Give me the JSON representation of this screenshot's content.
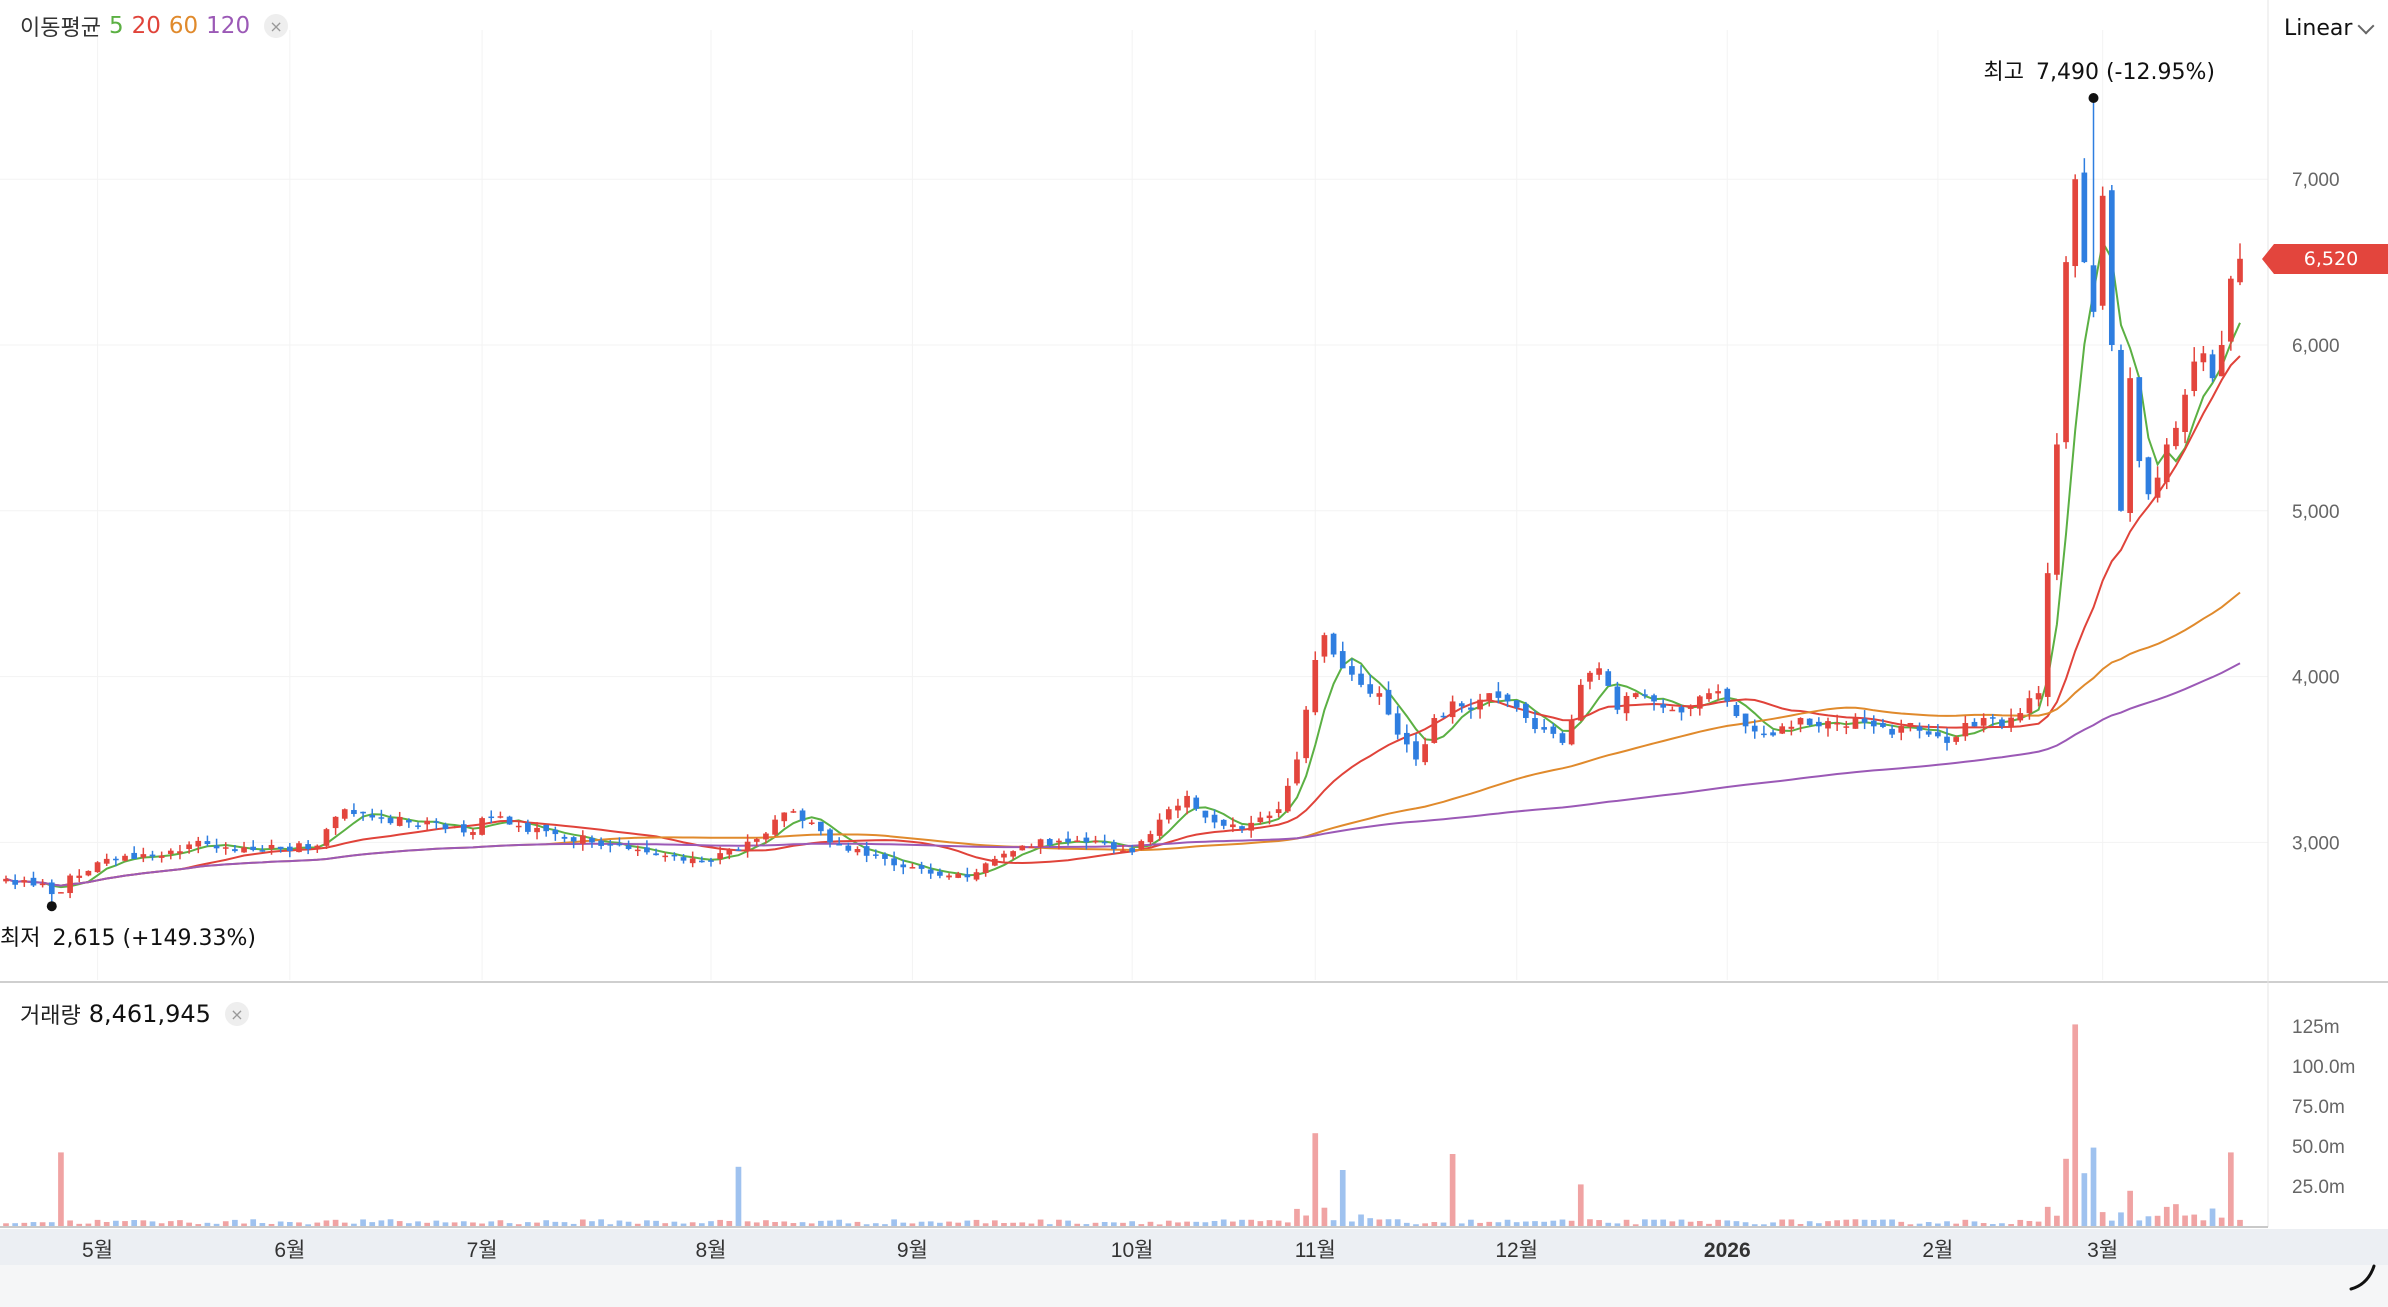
{
  "legend": {
    "title": "이동평균",
    "ma": [
      {
        "label": "5",
        "color": "#5bb043"
      },
      {
        "label": "20",
        "color": "#e0433a"
      },
      {
        "label": "60",
        "color": "#e08a2c"
      },
      {
        "label": "120",
        "color": "#9b59b6"
      }
    ],
    "close_symbol": "×"
  },
  "scale_button": {
    "label": "Linear"
  },
  "current_price": "6,520",
  "high_annotation": {
    "label": "최고",
    "value": "7,490 (-12.95%)"
  },
  "low_annotation": {
    "label": "최저",
    "value": "2,615 (+149.33%)"
  },
  "volume_legend": {
    "title": "거래량",
    "value": "8,461,945",
    "close_symbol": "×"
  },
  "colors": {
    "up": "#e3453d",
    "down": "#2f7ee0",
    "vol_up": "#f0a3a3",
    "vol_down": "#9fc2ef",
    "grid": "#eeeeee"
  },
  "chart_data": {
    "type": "candlestick",
    "price_axis": {
      "ticks": [
        3000,
        4000,
        5000,
        6000,
        7000
      ],
      "tick_labels": [
        "3,000",
        "4,000",
        "5,000",
        "6,000",
        "7,000"
      ],
      "range": [
        2200,
        7900
      ]
    },
    "volume_axis": {
      "ticks": [
        25,
        50,
        75,
        100,
        125
      ],
      "tick_labels": [
        "25.0m",
        "50.0m",
        "75.0m",
        "100.0m",
        "125m"
      ],
      "range": [
        0,
        135
      ],
      "unit": "m"
    },
    "x_axis": {
      "labels": [
        {
          "label": "5월",
          "bar": 10
        },
        {
          "label": "6월",
          "bar": 31
        },
        {
          "label": "7월",
          "bar": 52
        },
        {
          "label": "8월",
          "bar": 77
        },
        {
          "label": "9월",
          "bar": 99
        },
        {
          "label": "10월",
          "bar": 123
        },
        {
          "label": "11월",
          "bar": 143
        },
        {
          "label": "12월",
          "bar": 165
        },
        {
          "label": "2026",
          "bar": 188,
          "bold": true
        },
        {
          "label": "2월",
          "bar": 211
        },
        {
          "label": "3월",
          "bar": 229
        }
      ],
      "bar_count": 245
    },
    "ohlc_keypoints": [
      [
        0,
        2780
      ],
      [
        3,
        2740
      ],
      [
        6,
        2700
      ],
      [
        7,
        2800
      ],
      [
        10,
        2880
      ],
      [
        14,
        2900
      ],
      [
        18,
        2950
      ],
      [
        22,
        2990
      ],
      [
        26,
        2970
      ],
      [
        30,
        2960
      ],
      [
        34,
        2980
      ],
      [
        37,
        3200
      ],
      [
        40,
        3150
      ],
      [
        44,
        3120
      ],
      [
        48,
        3080
      ],
      [
        50,
        3060
      ],
      [
        53,
        3150
      ],
      [
        56,
        3100
      ],
      [
        60,
        3050
      ],
      [
        64,
        3000
      ],
      [
        68,
        2960
      ],
      [
        72,
        2920
      ],
      [
        76,
        2880
      ],
      [
        79,
        2960
      ],
      [
        82,
        3020
      ],
      [
        85,
        3180
      ],
      [
        88,
        3120
      ],
      [
        90,
        3000
      ],
      [
        93,
        2960
      ],
      [
        96,
        2900
      ],
      [
        100,
        2840
      ],
      [
        103,
        2800
      ],
      [
        106,
        2820
      ],
      [
        108,
        2900
      ],
      [
        111,
        2980
      ],
      [
        115,
        3010
      ],
      [
        118,
        3000
      ],
      [
        121,
        2960
      ],
      [
        123,
        2940
      ],
      [
        125,
        3050
      ],
      [
        127,
        3200
      ],
      [
        129,
        3280
      ],
      [
        131,
        3150
      ],
      [
        133,
        3100
      ],
      [
        135,
        3080
      ],
      [
        137,
        3150
      ],
      [
        139,
        3200
      ],
      [
        141,
        3500
      ],
      [
        142,
        3800
      ],
      [
        143,
        4100
      ],
      [
        144,
        4250
      ],
      [
        146,
        4050
      ],
      [
        148,
        3950
      ],
      [
        150,
        3900
      ],
      [
        152,
        3650
      ],
      [
        154,
        3500
      ],
      [
        156,
        3750
      ],
      [
        158,
        3850
      ],
      [
        160,
        3800
      ],
      [
        162,
        3900
      ],
      [
        164,
        3850
      ],
      [
        166,
        3750
      ],
      [
        168,
        3680
      ],
      [
        170,
        3600
      ],
      [
        172,
        3950
      ],
      [
        174,
        4050
      ],
      [
        176,
        3800
      ],
      [
        178,
        3900
      ],
      [
        180,
        3850
      ],
      [
        182,
        3800
      ],
      [
        184,
        3820
      ],
      [
        186,
        3900
      ],
      [
        188,
        3850
      ],
      [
        190,
        3700
      ],
      [
        192,
        3650
      ],
      [
        194,
        3700
      ],
      [
        196,
        3750
      ],
      [
        198,
        3700
      ],
      [
        200,
        3720
      ],
      [
        202,
        3750
      ],
      [
        204,
        3700
      ],
      [
        206,
        3650
      ],
      [
        208,
        3720
      ],
      [
        210,
        3650
      ],
      [
        212,
        3600
      ],
      [
        214,
        3720
      ],
      [
        216,
        3750
      ],
      [
        218,
        3700
      ],
      [
        220,
        3780
      ],
      [
        222,
        3900
      ],
      [
        224,
        5400
      ],
      [
        225,
        6500
      ],
      [
        226,
        7000
      ],
      [
        227,
        6500
      ],
      [
        228,
        6200
      ],
      [
        229,
        6900
      ],
      [
        230,
        6000
      ],
      [
        231,
        5000
      ],
      [
        232,
        5800
      ],
      [
        233,
        5300
      ],
      [
        234,
        5100
      ],
      [
        235,
        5200
      ],
      [
        236,
        5400
      ],
      [
        237,
        5500
      ],
      [
        238,
        5700
      ],
      [
        239,
        5900
      ],
      [
        240,
        5950
      ],
      [
        241,
        5800
      ],
      [
        242,
        6000
      ],
      [
        243,
        6400
      ],
      [
        244,
        6520
      ]
    ],
    "high": {
      "bar": 228,
      "value": 7490
    },
    "low": {
      "bar": 5,
      "value": 2615
    },
    "volume_spikes_m": [
      [
        6,
        46
      ],
      [
        80,
        37
      ],
      [
        143,
        58
      ],
      [
        146,
        35
      ],
      [
        158,
        45
      ],
      [
        172,
        26
      ],
      [
        225,
        42
      ],
      [
        226,
        126
      ],
      [
        227,
        33
      ],
      [
        228,
        49
      ],
      [
        232,
        22
      ],
      [
        243,
        46
      ]
    ],
    "volume_base_m": 2.5
  }
}
